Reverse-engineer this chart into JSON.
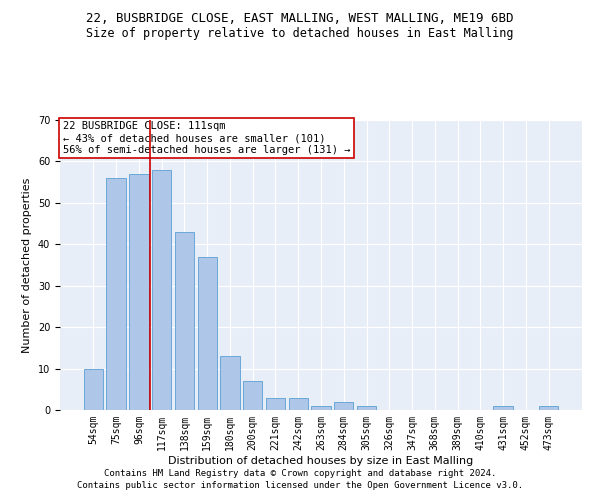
{
  "title": "22, BUSBRIDGE CLOSE, EAST MALLING, WEST MALLING, ME19 6BD",
  "subtitle": "Size of property relative to detached houses in East Malling",
  "xlabel": "Distribution of detached houses by size in East Malling",
  "ylabel": "Number of detached properties",
  "categories": [
    "54sqm",
    "75sqm",
    "96sqm",
    "117sqm",
    "138sqm",
    "159sqm",
    "180sqm",
    "200sqm",
    "221sqm",
    "242sqm",
    "263sqm",
    "284sqm",
    "305sqm",
    "326sqm",
    "347sqm",
    "368sqm",
    "389sqm",
    "410sqm",
    "431sqm",
    "452sqm",
    "473sqm"
  ],
  "values": [
    10,
    56,
    57,
    58,
    43,
    37,
    13,
    7,
    3,
    3,
    1,
    2,
    1,
    0,
    0,
    0,
    0,
    0,
    1,
    0,
    1
  ],
  "bar_color": "#aec6e8",
  "bar_edge_color": "#5a9fd4",
  "vline_color": "#cc0000",
  "vline_pos": 2.5,
  "annotation_text": "22 BUSBRIDGE CLOSE: 111sqm\n← 43% of detached houses are smaller (101)\n56% of semi-detached houses are larger (131) →",
  "annotation_box_color": "#ffffff",
  "annotation_box_edge": "#cc0000",
  "ylim": [
    0,
    70
  ],
  "yticks": [
    0,
    10,
    20,
    30,
    40,
    50,
    60,
    70
  ],
  "bg_color": "#e8eef7",
  "footer1": "Contains HM Land Registry data © Crown copyright and database right 2024.",
  "footer2": "Contains public sector information licensed under the Open Government Licence v3.0.",
  "title_fontsize": 9,
  "subtitle_fontsize": 8.5,
  "label_fontsize": 8,
  "tick_fontsize": 7,
  "annotation_fontsize": 7.5,
  "footer_fontsize": 6.5
}
